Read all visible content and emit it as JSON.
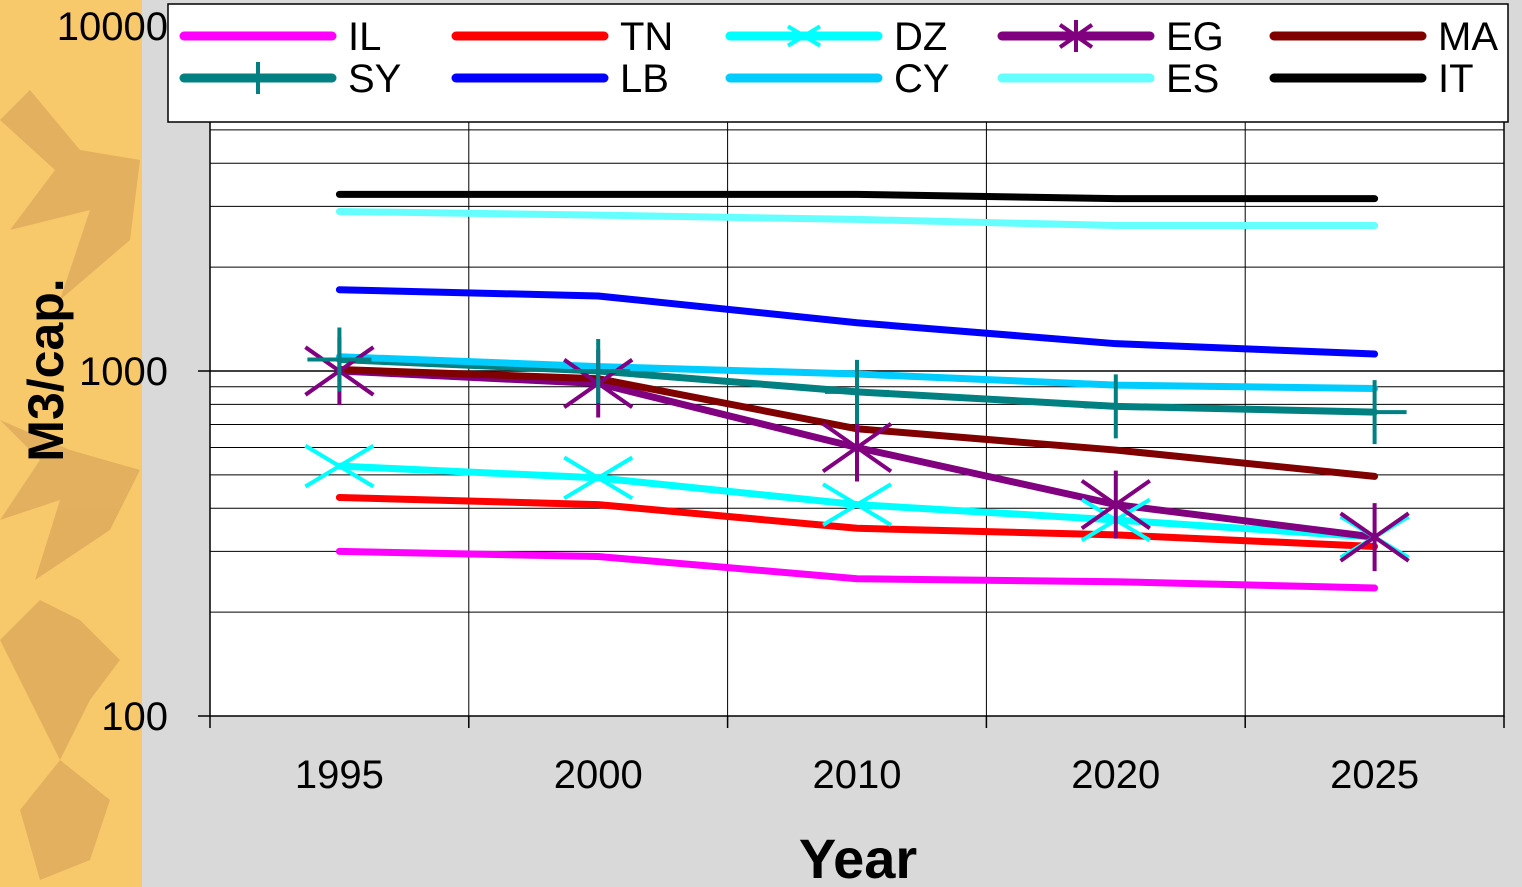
{
  "chart_data": {
    "type": "line",
    "title": "",
    "xlabel": "Year",
    "ylabel": "M3/cap.",
    "y_scale": "log",
    "ylim": [
      100,
      10000
    ],
    "y_ticks": [
      "100",
      "1000",
      "10000"
    ],
    "categories": [
      "1995",
      "2000",
      "2010",
      "2020",
      "2025"
    ],
    "grid": true,
    "legend_placement": "top",
    "series": [
      {
        "name": "IL",
        "color": "#ff00ff",
        "marker": "none",
        "values": [
          300,
          290,
          250,
          245,
          235
        ]
      },
      {
        "name": "TN",
        "color": "#ff0000",
        "marker": "none",
        "values": [
          430,
          410,
          350,
          335,
          310
        ]
      },
      {
        "name": "DZ",
        "color": "#00ffff",
        "marker": "x",
        "values": [
          530,
          490,
          410,
          370,
          330
        ]
      },
      {
        "name": "EG",
        "color": "#800080",
        "marker": "star",
        "values": [
          1000,
          920,
          600,
          410,
          330
        ]
      },
      {
        "name": "MA",
        "color": "#800000",
        "marker": "none",
        "values": [
          1010,
          950,
          680,
          590,
          495
        ]
      },
      {
        "name": "SY",
        "color": "#008080",
        "marker": "plus",
        "values": [
          1080,
          1000,
          870,
          790,
          760
        ]
      },
      {
        "name": "LB",
        "color": "#0000ff",
        "marker": "none",
        "values": [
          1720,
          1650,
          1380,
          1200,
          1120
        ]
      },
      {
        "name": "CY",
        "color": "#00ccff",
        "marker": "none",
        "values": [
          1100,
          1030,
          980,
          910,
          890
        ]
      },
      {
        "name": "ES",
        "color": "#66ffff",
        "marker": "none",
        "values": [
          2900,
          2830,
          2750,
          2640,
          2640
        ]
      },
      {
        "name": "IT",
        "color": "#000000",
        "marker": "none",
        "values": [
          3250,
          3250,
          3250,
          3160,
          3160
        ]
      }
    ]
  }
}
